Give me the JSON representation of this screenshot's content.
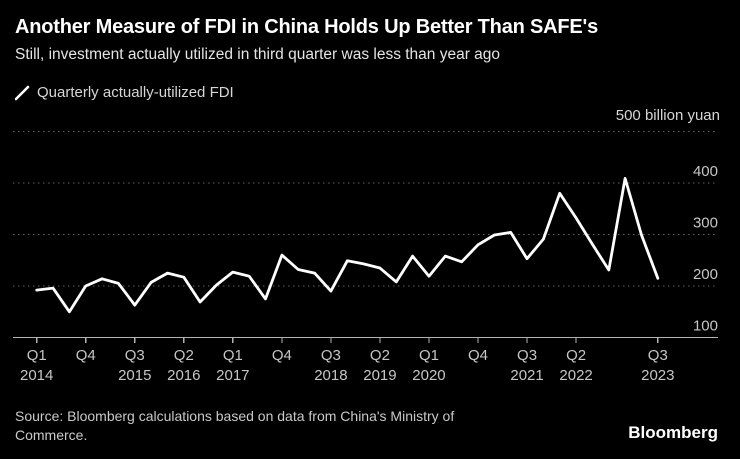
{
  "header": {
    "title": "Another Measure of FDI in China Holds Up Better Than SAFE's",
    "subtitle": "Still, investment actually utilized in third quarter was less than year ago"
  },
  "legend": {
    "label": "Quarterly actually-utilized FDI"
  },
  "unit_label": "500 billion yuan",
  "footer": {
    "source_line1": "Source: Bloomberg calculations based on data from China's Ministry of",
    "source_line2": "Commerce.",
    "brand": "Bloomberg"
  },
  "colors": {
    "background": "#000000",
    "line": "#ffffff",
    "grid": "#626262",
    "axis": "#b3b3b3",
    "tick_text": "#c6c6c6",
    "title_text": "#ffffff",
    "subtitle_text": "#e4e4e4"
  },
  "chart_data": {
    "type": "line",
    "title": "Another Measure of FDI in China Holds Up Better Than SAFE's",
    "subtitle": "Still, investment actually utilized in third quarter was less than year ago",
    "series_name": "Quarterly actually-utilized FDI",
    "unit": "billion yuan",
    "ylabel": "500 billion yuan",
    "ylim": [
      100,
      500
    ],
    "yticks": [
      100,
      200,
      300,
      400,
      500
    ],
    "grid": "horizontal-dotted",
    "legend_position": "top-left",
    "x": [
      "Q1 2014",
      "Q2 2014",
      "Q3 2014",
      "Q4 2014",
      "Q1 2015",
      "Q2 2015",
      "Q3 2015",
      "Q4 2015",
      "Q1 2016",
      "Q2 2016",
      "Q3 2016",
      "Q4 2016",
      "Q1 2017",
      "Q2 2017",
      "Q3 2017",
      "Q4 2017",
      "Q1 2018",
      "Q2 2018",
      "Q3 2018",
      "Q4 2018",
      "Q1 2019",
      "Q2 2019",
      "Q3 2019",
      "Q4 2019",
      "Q1 2020",
      "Q2 2020",
      "Q3 2020",
      "Q4 2020",
      "Q1 2021",
      "Q2 2021",
      "Q3 2021",
      "Q4 2021",
      "Q1 2022",
      "Q2 2022",
      "Q3 2022",
      "Q4 2022",
      "Q1 2023",
      "Q2 2023",
      "Q3 2023"
    ],
    "values": [
      192,
      196,
      150,
      200,
      214,
      205,
      163,
      207,
      225,
      217,
      169,
      202,
      227,
      219,
      175,
      260,
      232,
      225,
      190,
      249,
      243,
      235,
      208,
      258,
      219,
      258,
      247,
      280,
      299,
      304,
      253,
      291,
      380,
      332,
      281,
      231,
      409,
      299,
      215
    ],
    "xticks": [
      {
        "i": 0,
        "quarter": "Q1",
        "year": "2014"
      },
      {
        "i": 3,
        "quarter": "Q4",
        "year": ""
      },
      {
        "i": 6,
        "quarter": "Q3",
        "year": "2015"
      },
      {
        "i": 9,
        "quarter": "Q2",
        "year": "2016"
      },
      {
        "i": 12,
        "quarter": "Q1",
        "year": "2017"
      },
      {
        "i": 15,
        "quarter": "Q4",
        "year": ""
      },
      {
        "i": 18,
        "quarter": "Q3",
        "year": "2018"
      },
      {
        "i": 21,
        "quarter": "Q2",
        "year": "2019"
      },
      {
        "i": 24,
        "quarter": "Q1",
        "year": "2020"
      },
      {
        "i": 27,
        "quarter": "Q4",
        "year": ""
      },
      {
        "i": 30,
        "quarter": "Q3",
        "year": "2021"
      },
      {
        "i": 33,
        "quarter": "Q2",
        "year": "2022"
      },
      {
        "i": 38,
        "quarter": "Q3",
        "year": "2023"
      }
    ]
  }
}
